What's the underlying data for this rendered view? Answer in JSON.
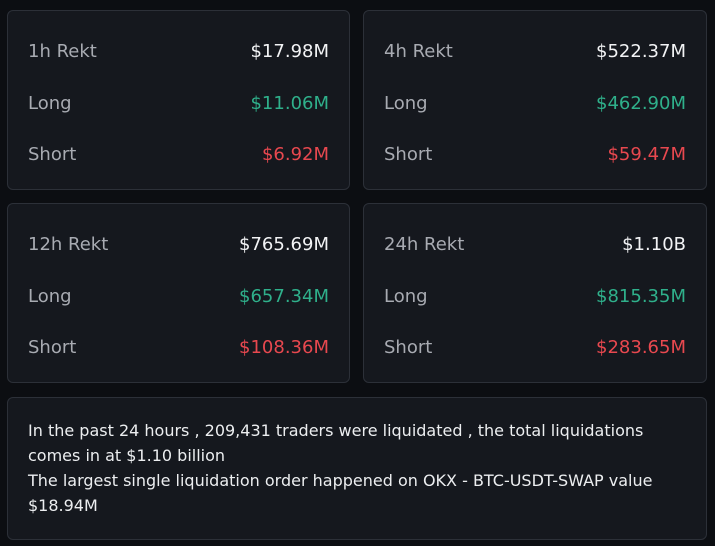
{
  "cards": [
    {
      "title": "1h Rekt",
      "total": "$17.98M",
      "long_label": "Long",
      "long": "$11.06M",
      "short_label": "Short",
      "short": "$6.92M"
    },
    {
      "title": "4h Rekt",
      "total": "$522.37M",
      "long_label": "Long",
      "long": "$462.90M",
      "short_label": "Short",
      "short": "$59.47M"
    },
    {
      "title": "12h Rekt",
      "total": "$765.69M",
      "long_label": "Long",
      "long": "$657.34M",
      "short_label": "Short",
      "short": "$108.36M"
    },
    {
      "title": "24h Rekt",
      "total": "$1.10B",
      "long_label": "Long",
      "long": "$815.35M",
      "short_label": "Short",
      "short": "$283.65M"
    }
  ],
  "summary": {
    "line1": "In the past 24 hours , 209,431 traders were liquidated , the total liquidations comes in at $1.10 billion",
    "line2": "The largest single liquidation order happened on OKX - BTC-USDT-SWAP value $18.94M"
  },
  "colors": {
    "long": "#2fb08b",
    "short": "#e8484f",
    "card_bg": "#15181e",
    "page_bg": "#0c0e12"
  }
}
